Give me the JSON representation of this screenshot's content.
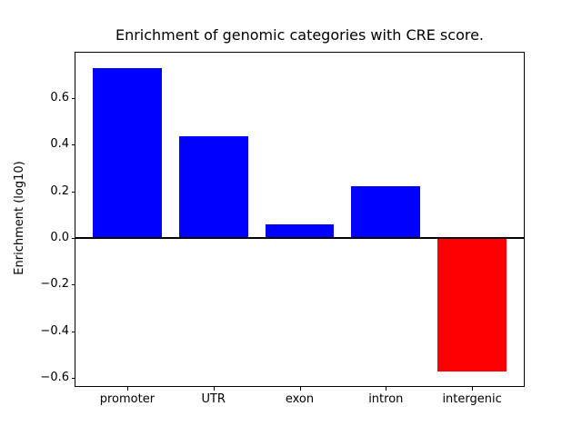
{
  "chart_data": {
    "type": "bar",
    "title": "Enrichment of genomic categories with CRE score.",
    "ylabel": "Enrichment (log10)",
    "xlabel": "",
    "categories": [
      "promoter",
      "UTR",
      "exon",
      "intron",
      "intergenic"
    ],
    "values": [
      0.73,
      0.435,
      0.057,
      0.222,
      -0.572
    ],
    "bar_colors": [
      "#0000ff",
      "#0000ff",
      "#0000ff",
      "#0000ff",
      "#ff0000"
    ],
    "positive_color": "#0000ff",
    "negative_color": "#ff0000",
    "axis_color": "#000000",
    "background_color": "#ffffff",
    "yticks": [
      0.6,
      0.4,
      0.2,
      0.0,
      -0.2,
      -0.4,
      -0.6
    ],
    "ytick_labels": [
      "0.6",
      "0.4",
      "0.2",
      "0.0",
      "−0.2",
      "−0.4",
      "−0.6"
    ],
    "ylim": [
      -0.635,
      0.795
    ],
    "xlim": [
      -0.6,
      4.6
    ],
    "bar_width": 0.8,
    "zero_line": true,
    "grid": false
  }
}
